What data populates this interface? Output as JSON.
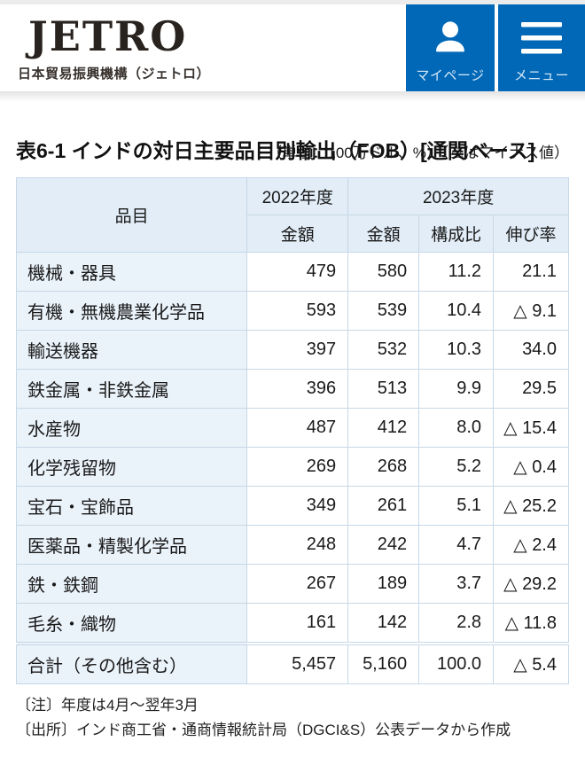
{
  "header": {
    "logo_text": "JETRO",
    "logo_tagline": "日本貿易振興機構（ジェトロ）",
    "mypage_label": "マイページ",
    "menu_label": "メニュー"
  },
  "title": "表6-1 インドの対日主要品目別輸出（FOB）[通関ベース]",
  "unit_note": "（単位：100万ドル、%）（△はマイナス値）",
  "table": {
    "header": {
      "item": "品目",
      "fy2022": "2022年度",
      "fy2023": "2023年度",
      "amount2022": "金額",
      "amount2023": "金額",
      "share": "構成比",
      "growth": "伸び率"
    },
    "rows": [
      {
        "item": "機械・器具",
        "amount_2022": "479",
        "amount_2023": "580",
        "share": "11.2",
        "growth": "21.1"
      },
      {
        "item": "有機・無機農業化学品",
        "amount_2022": "593",
        "amount_2023": "539",
        "share": "10.4",
        "growth": "△ 9.1"
      },
      {
        "item": "輸送機器",
        "amount_2022": "397",
        "amount_2023": "532",
        "share": "10.3",
        "growth": "34.0"
      },
      {
        "item": "鉄金属・非鉄金属",
        "amount_2022": "396",
        "amount_2023": "513",
        "share": "9.9",
        "growth": "29.5"
      },
      {
        "item": "水産物",
        "amount_2022": "487",
        "amount_2023": "412",
        "share": "8.0",
        "growth": "△ 15.4"
      },
      {
        "item": "化学残留物",
        "amount_2022": "269",
        "amount_2023": "268",
        "share": "5.2",
        "growth": "△ 0.4"
      },
      {
        "item": "宝石・宝飾品",
        "amount_2022": "349",
        "amount_2023": "261",
        "share": "5.1",
        "growth": "△ 25.2"
      },
      {
        "item": "医薬品・精製化学品",
        "amount_2022": "248",
        "amount_2023": "242",
        "share": "4.7",
        "growth": "△ 2.4"
      },
      {
        "item": "鉄・鉄鋼",
        "amount_2022": "267",
        "amount_2023": "189",
        "share": "3.7",
        "growth": "△ 29.2"
      },
      {
        "item": "毛糸・織物",
        "amount_2022": "161",
        "amount_2023": "142",
        "share": "2.8",
        "growth": "△ 11.8"
      }
    ],
    "total": {
      "item": "合計（その他含む）",
      "amount_2022": "5,457",
      "amount_2023": "5,160",
      "share": "100.0",
      "growth": "△ 5.4"
    }
  },
  "notes": [
    "〔注〕年度は4月～翌年3月",
    "〔出所〕インド商工省・通商情報統計局（DGCI&S）公表データから作成"
  ],
  "colors": {
    "brand_blue": "#0068b7",
    "table_header_bg": "#e2edf7",
    "item_col_bg": "#eaf2fa",
    "table_border": "#c7d8e6"
  }
}
